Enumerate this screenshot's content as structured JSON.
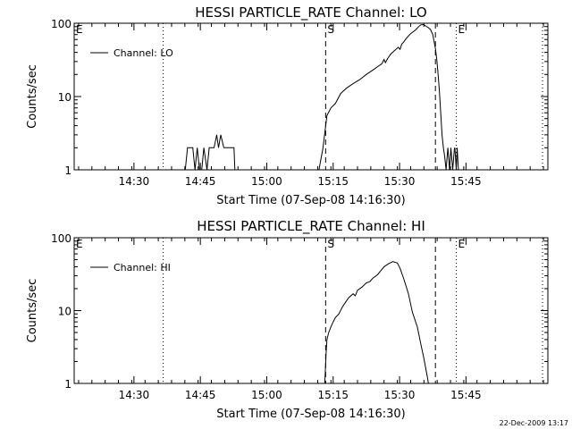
{
  "footer": {
    "stamp": "22-Dec-2009 13:17"
  },
  "chart_data": [
    {
      "type": "line",
      "title": "HESSI PARTICLE_RATE Channel: LO",
      "xlabel": "Start Time (07-Sep-08 14:16:30)",
      "ylabel": "Counts/sec",
      "xunit": "minutes since 14:16:30",
      "xlim": [
        0,
        107
      ],
      "ylim": [
        1,
        100
      ],
      "yscale": "log",
      "grid": false,
      "legend": {
        "position": "top-left",
        "entries": [
          "Channel: LO"
        ]
      },
      "x_ticks": [
        {
          "x": 13.5,
          "label": "14:30"
        },
        {
          "x": 28.5,
          "label": "14:45"
        },
        {
          "x": 43.5,
          "label": "15:00"
        },
        {
          "x": 58.5,
          "label": "15:15"
        },
        {
          "x": 73.5,
          "label": "15:30"
        },
        {
          "x": 88.5,
          "label": "15:45"
        }
      ],
      "y_ticks": [
        {
          "y": 1,
          "label": "1"
        },
        {
          "y": 10,
          "label": "10"
        },
        {
          "y": 100,
          "label": "100"
        }
      ],
      "markers": [
        {
          "x": 0,
          "style": "dotted",
          "label": "E"
        },
        {
          "x": 20.1,
          "style": "dotted",
          "label": ""
        },
        {
          "x": 56.8,
          "style": "dashed",
          "label": "S"
        },
        {
          "x": 81.6,
          "style": "dashed",
          "label": ""
        },
        {
          "x": 86.3,
          "style": "dotted",
          "label": "E"
        },
        {
          "x": 105.8,
          "style": "dotted",
          "label": ""
        }
      ],
      "segments": [
        {
          "x": [
            25.1,
            25.6,
            26.8,
            27.3,
            27.8,
            28.3,
            28.8,
            29.3,
            30.0,
            30.5,
            31.0,
            31.6,
            32.2,
            32.6,
            33.1,
            33.8,
            34.2,
            34.7,
            35.7,
            36.1,
            36.3
          ],
          "y": [
            1,
            2,
            2,
            1,
            2,
            1,
            1,
            2,
            1,
            2,
            2,
            2,
            3,
            2,
            3,
            2,
            2,
            2,
            2,
            2,
            1
          ]
        },
        {
          "x": [
            55.3,
            56.2,
            57.1,
            58.0,
            59.0,
            60.2,
            61.5,
            63.0,
            64.5,
            66.0,
            67.5,
            68.7,
            69.5,
            70.0,
            70.3,
            70.8,
            71.5,
            72.3,
            73.2,
            73.6,
            74.0,
            74.4,
            75.0,
            76.0,
            77.2,
            77.8,
            78.3,
            78.9,
            79.4,
            79.9,
            80.5,
            81.0,
            81.6,
            81.9,
            82.2,
            82.5,
            82.8,
            83.1,
            83.4,
            83.7,
            84.0,
            84.4,
            84.8,
            85.1,
            85.5,
            85.9
          ],
          "y": [
            1,
            2,
            5.5,
            7,
            8,
            11,
            13,
            15,
            17,
            20,
            23,
            26,
            28,
            32,
            29,
            33,
            38,
            42,
            47,
            44,
            52,
            55,
            62,
            72,
            82,
            90,
            95,
            96,
            92,
            88,
            82,
            70,
            45,
            32,
            20,
            12,
            6,
            3,
            2,
            1.5,
            1,
            2,
            1,
            2,
            1,
            2
          ]
        },
        {
          "x": [
            86.0,
            86.3,
            86.5,
            86.8,
            87.1
          ],
          "y": [
            2,
            1,
            2,
            1,
            1
          ]
        }
      ]
    },
    {
      "type": "line",
      "title": "HESSI PARTICLE_RATE Channel: HI",
      "xlabel": "Start Time (07-Sep-08 14:16:30)",
      "ylabel": "Counts/sec",
      "xunit": "minutes since 14:16:30",
      "xlim": [
        0,
        107
      ],
      "ylim": [
        1,
        100
      ],
      "yscale": "log",
      "grid": false,
      "legend": {
        "position": "top-left",
        "entries": [
          "Channel: HI"
        ]
      },
      "x_ticks": [
        {
          "x": 13.5,
          "label": "14:30"
        },
        {
          "x": 28.5,
          "label": "14:45"
        },
        {
          "x": 43.5,
          "label": "15:00"
        },
        {
          "x": 58.5,
          "label": "15:15"
        },
        {
          "x": 73.5,
          "label": "15:30"
        },
        {
          "x": 88.5,
          "label": "15:45"
        }
      ],
      "y_ticks": [
        {
          "y": 1,
          "label": "1"
        },
        {
          "y": 10,
          "label": "10"
        },
        {
          "y": 100,
          "label": "100"
        }
      ],
      "markers": [
        {
          "x": 0,
          "style": "dotted",
          "label": "E"
        },
        {
          "x": 20.1,
          "style": "dotted",
          "label": ""
        },
        {
          "x": 56.8,
          "style": "dashed",
          "label": "S"
        },
        {
          "x": 81.6,
          "style": "dashed",
          "label": ""
        },
        {
          "x": 86.3,
          "style": "dotted",
          "label": "E"
        },
        {
          "x": 105.8,
          "style": "dotted",
          "label": ""
        }
      ],
      "segments": [
        {
          "x": [
            56.6,
            56.9,
            57.1,
            57.5,
            58.0,
            58.5,
            59.0,
            59.8,
            60.5,
            61.3,
            62.0,
            63.0,
            63.5,
            64.0,
            65.0,
            66.0,
            66.8,
            67.5,
            68.5,
            69.2,
            70.0,
            71.0,
            72.0,
            73.0,
            73.6,
            74.4,
            75.5,
            76.4,
            77.5,
            78.3,
            79.0,
            79.5,
            79.8,
            80.0
          ],
          "y": [
            1,
            2.5,
            4,
            5,
            6,
            7,
            8,
            9,
            11,
            13,
            15,
            17,
            16,
            19,
            21,
            24,
            25,
            28,
            31,
            35,
            40,
            44,
            47,
            45,
            38,
            28,
            17,
            9.5,
            6,
            3.5,
            2.2,
            1.5,
            1.2,
            1
          ]
        }
      ]
    }
  ]
}
